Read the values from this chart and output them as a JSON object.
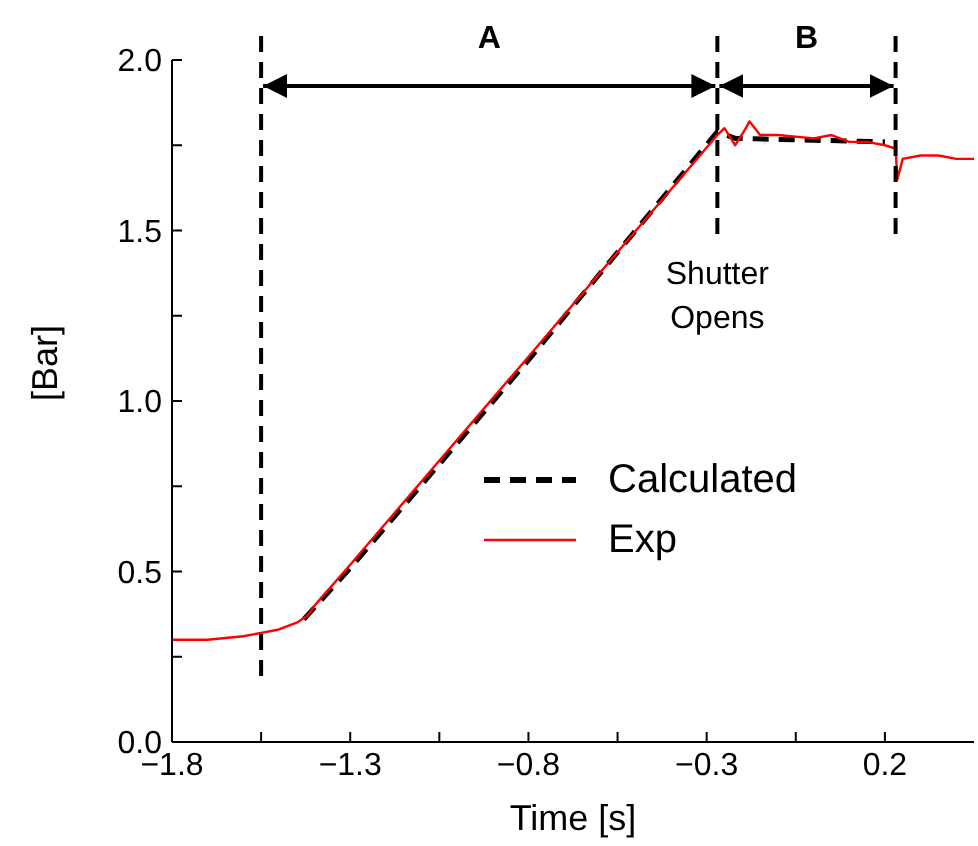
{
  "chart_data": {
    "type": "line",
    "xlabel": "Time [s]",
    "ylabel": "[Bar]",
    "xlim": [
      -1.8,
      0.45
    ],
    "ylim": [
      0,
      2
    ],
    "xticks": [
      {
        "value": -1.8,
        "label": "−1.8"
      },
      {
        "value": -1.55,
        "label": null
      },
      {
        "value": -1.3,
        "label": "−1.3"
      },
      {
        "value": -1.05,
        "label": null
      },
      {
        "value": -0.8,
        "label": "−0.8"
      },
      {
        "value": -0.55,
        "label": null
      },
      {
        "value": -0.3,
        "label": "−0.3"
      },
      {
        "value": -0.05,
        "label": null
      },
      0.2
    ],
    "yticks": [
      {
        "value": 0,
        "label": "0.0"
      },
      {
        "value": 0.25,
        "label": null
      },
      0.5,
      {
        "value": 0.75,
        "label": null
      },
      {
        "value": 1,
        "label": "1.0"
      },
      {
        "value": 1.25,
        "label": null
      },
      1.5,
      {
        "value": 1.75,
        "label": null
      },
      {
        "value": 2,
        "label": "2.0"
      }
    ],
    "series": [
      {
        "name": "Calculated",
        "color": "#000000",
        "line_style": "dashed",
        "x": [
          -1.43,
          -1.3,
          -0.8,
          -0.27,
          -0.22,
          0.2
        ],
        "values": [
          0.36,
          0.51,
          1.12,
          1.79,
          1.77,
          1.76
        ]
      },
      {
        "name": "Exp",
        "color": "#ff0000",
        "line_style": "solid",
        "x": [
          -1.8,
          -1.7,
          -1.6,
          -1.55,
          -1.5,
          -1.45,
          -1.42,
          -1.4,
          -1.3,
          -0.8,
          -0.27,
          -0.25,
          -0.22,
          -0.19,
          -0.18,
          -0.15,
          -0.1,
          0,
          0.05,
          0.1,
          0.15,
          0.2,
          0.23,
          0.235,
          0.25,
          0.3,
          0.35,
          0.4,
          0.45
        ],
        "values": [
          0.3,
          0.3,
          0.31,
          0.32,
          0.33,
          0.35,
          0.37,
          0.4,
          0.52,
          1.13,
          1.78,
          1.8,
          1.75,
          1.8,
          1.82,
          1.78,
          1.78,
          1.77,
          1.78,
          1.76,
          1.76,
          1.75,
          1.74,
          1.65,
          1.71,
          1.72,
          1.72,
          1.71,
          1.71
        ]
      }
    ],
    "ref_lines": [
      {
        "axis": "x",
        "value": -1.55,
        "line_style": "dashed",
        "color": "#000000"
      },
      {
        "axis": "x",
        "value": -0.27,
        "label": "Shutter Opens",
        "line_style": "dashed",
        "color": "#000000"
      },
      {
        "axis": "x",
        "value": 0.23,
        "line_style": "dashed",
        "color": "#000000"
      }
    ],
    "annotations": [
      "A",
      "B"
    ],
    "legend": "center right",
    "marker": "none",
    "grid": false
  }
}
